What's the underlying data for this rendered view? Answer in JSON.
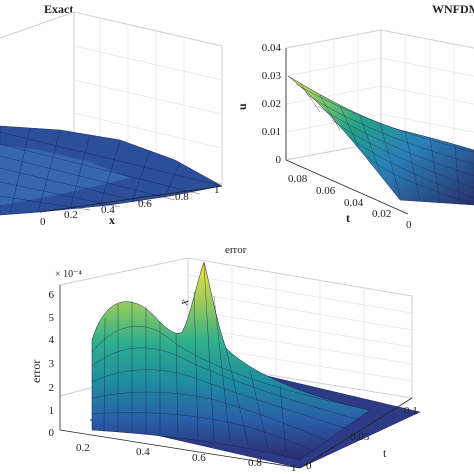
{
  "figure": {
    "panel_a": {
      "title": "Exact",
      "xlabel": "x",
      "x_ticks": [
        "0",
        "0.2",
        "0.4",
        "0.6",
        "0.8",
        "1"
      ]
    },
    "panel_b": {
      "title": "WNFDM",
      "ylabel": "u",
      "tlabel": "t",
      "u_ticks": [
        "0",
        "0.01",
        "0.02",
        "0.03",
        "0.04"
      ],
      "t_ticks": [
        "0",
        "0.02",
        "0.04",
        "0.06",
        "0.08"
      ]
    },
    "panel_c": {
      "title": "error",
      "ylabel": "error",
      "xlabel": "x",
      "tlabel": "t",
      "exponent": "× 10⁻⁴",
      "e_ticks": [
        "0",
        "1",
        "2",
        "3",
        "4",
        "5",
        "6"
      ],
      "x_ticks": [
        "0.2",
        "0.4",
        "0.6",
        "0.8",
        "1"
      ],
      "t_ticks": [
        "0",
        "0.05",
        "0.1"
      ]
    }
  },
  "chart_data": [
    {
      "type": "surface",
      "title": "Exact",
      "xlabel": "x",
      "xlim": [
        0,
        1
      ],
      "note_visible": "surface partially cropped at left"
    },
    {
      "type": "surface",
      "title": "WNFDM",
      "ylabel": "u",
      "zlabel": "",
      "tlabel": "t",
      "ulim": [
        0,
        0.04
      ],
      "tlim": [
        0,
        0.09
      ],
      "u_at_t_0.09_x_0": 0.03
    },
    {
      "type": "surface",
      "title": "error",
      "ylabel": "error",
      "xlabel": "x",
      "tlabel": "t",
      "scale": "1e-4",
      "zlim": [
        0,
        6
      ],
      "xlim": [
        0.1,
        1
      ],
      "tlim": [
        0,
        0.1
      ],
      "peaks": [
        {
          "x": 0.25,
          "t": 0.1,
          "value": 5.6
        },
        {
          "x": 0.55,
          "t": 0.1,
          "value": 6.0
        }
      ]
    }
  ]
}
